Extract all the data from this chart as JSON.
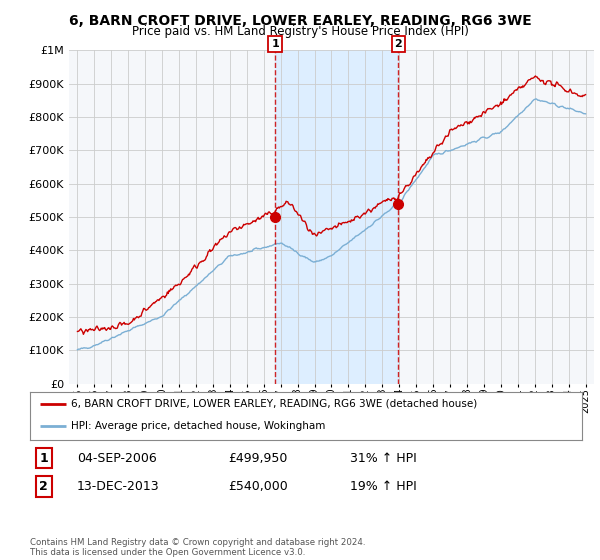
{
  "title": "6, BARN CROFT DRIVE, LOWER EARLEY, READING, RG6 3WE",
  "subtitle": "Price paid vs. HM Land Registry's House Price Index (HPI)",
  "legend_label_red": "6, BARN CROFT DRIVE, LOWER EARLEY, READING, RG6 3WE (detached house)",
  "legend_label_blue": "HPI: Average price, detached house, Wokingham",
  "annotation1_date": "04-SEP-2006",
  "annotation1_price": "£499,950",
  "annotation1_hpi": "31% ↑ HPI",
  "annotation2_date": "13-DEC-2013",
  "annotation2_price": "£540,000",
  "annotation2_hpi": "19% ↑ HPI",
  "footnote": "Contains HM Land Registry data © Crown copyright and database right 2024.\nThis data is licensed under the Open Government Licence v3.0.",
  "plot_bg_color": "#f0f4f8",
  "shade_color": "#ddeeff",
  "grid_color": "#cccccc",
  "ylim_top": 1000000,
  "yticks": [
    0,
    100000,
    200000,
    300000,
    400000,
    500000,
    600000,
    700000,
    800000,
    900000,
    1000000
  ],
  "red_color": "#cc0000",
  "blue_color": "#7bafd4",
  "vline_color": "#cc0000",
  "sale1_x": 2006.67,
  "sale1_y": 499950,
  "sale2_x": 2013.95,
  "sale2_y": 540000,
  "xmin": 1994.5,
  "xmax": 2025.5
}
